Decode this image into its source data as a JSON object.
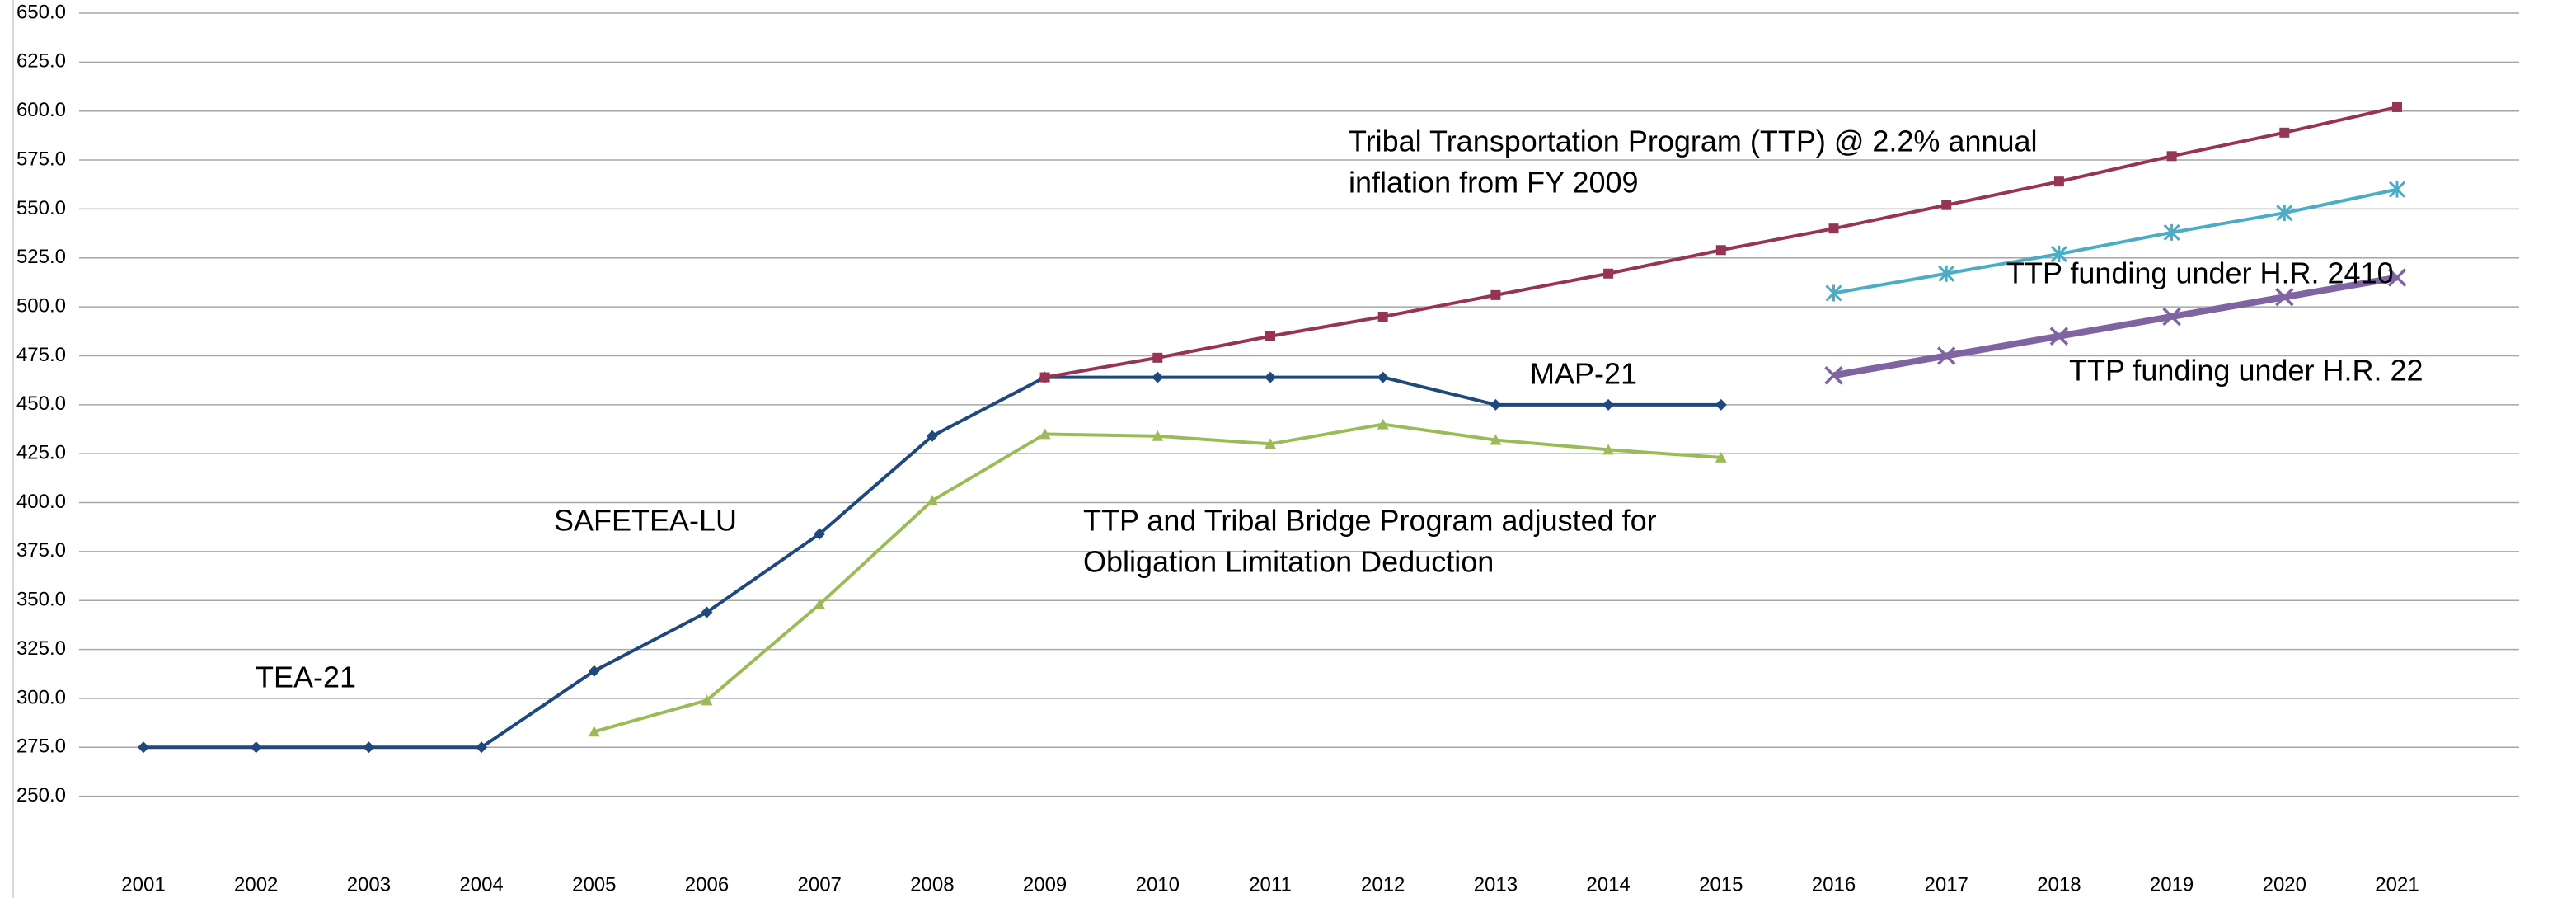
{
  "chart_data": {
    "type": "line",
    "categories": [
      "2001",
      "2002",
      "2003",
      "2004",
      "2005",
      "2006",
      "2007",
      "2008",
      "2009",
      "2010",
      "2011",
      "2012",
      "2013",
      "2014",
      "2015",
      "2016",
      "2017",
      "2018",
      "2019",
      "2020",
      "2021"
    ],
    "series": [
      {
        "color": "#1f497d",
        "marker": "diamond",
        "values": [
          275,
          275,
          275,
          275,
          314,
          344,
          384,
          434,
          464,
          464,
          464,
          464,
          450,
          450,
          450,
          null,
          null,
          null,
          null,
          null,
          null
        ]
      },
      {
        "color": "#9bbb59",
        "marker": "triangle",
        "values": [
          null,
          null,
          null,
          null,
          283,
          299,
          348,
          401,
          435,
          434,
          430,
          440,
          432,
          427,
          423,
          null,
          null,
          null,
          null,
          null,
          null
        ]
      },
      {
        "color": "#953553",
        "marker": "square",
        "values": [
          null,
          null,
          null,
          null,
          null,
          null,
          null,
          null,
          464,
          474,
          485,
          495,
          506,
          517,
          529,
          540,
          552,
          564,
          577,
          589,
          602
        ]
      },
      {
        "color": "#4bacc6",
        "marker": "asterisk",
        "values": [
          null,
          null,
          null,
          null,
          null,
          null,
          null,
          null,
          null,
          null,
          null,
          null,
          null,
          null,
          null,
          507,
          517,
          527,
          538,
          548,
          560
        ]
      },
      {
        "color": "#8064a2",
        "marker": "x",
        "values": [
          null,
          null,
          null,
          null,
          null,
          null,
          null,
          null,
          null,
          null,
          null,
          null,
          null,
          null,
          null,
          465,
          475,
          485,
          495,
          505,
          515
        ]
      }
    ],
    "annotations": [
      {
        "lines": [
          "TEA-21"
        ],
        "color": "#1f497d"
      },
      {
        "lines": [
          "SAFETEA-LU"
        ],
        "color": "#1f497d"
      },
      {
        "lines": [
          "MAP-21"
        ],
        "color": "#1f497d"
      },
      {
        "lines": [
          "Tribal Transportation Program (TTP) @ 2.2% annual",
          "inflation from FY 2009"
        ],
        "color": "#c00000"
      },
      {
        "lines": [
          "TTP and  Tribal Bridge Program adjusted for",
          "Obligation Limitation Deduction"
        ],
        "color": "#9bbb59"
      },
      {
        "lines": [
          "TTP funding under H.R. 2410"
        ],
        "color": "#4bacc6"
      },
      {
        "lines": [
          "TTP funding under H.R. 22"
        ],
        "color": "#8064a2"
      }
    ],
    "ylim": [
      225,
      650
    ],
    "yticks": [
      {
        "value": 250,
        "label": "250.0"
      },
      {
        "value": 275,
        "label": "275.0"
      },
      {
        "value": 300,
        "label": "300.0"
      },
      {
        "value": 325,
        "label": "325.0"
      },
      {
        "value": 350,
        "label": "350.0"
      },
      {
        "value": 375,
        "label": "375.0"
      },
      {
        "value": 400,
        "label": "400.0"
      },
      {
        "value": 425,
        "label": "425.0"
      },
      {
        "value": 450,
        "label": "450.0"
      },
      {
        "value": 475,
        "label": "475.0"
      },
      {
        "value": 500,
        "label": "500.0"
      },
      {
        "value": 525,
        "label": "525.0"
      },
      {
        "value": 550,
        "label": "550.0"
      },
      {
        "value": 575,
        "label": "575.0"
      },
      {
        "value": 600,
        "label": "600.0"
      },
      {
        "value": 625,
        "label": "625.0"
      },
      {
        "value": 650,
        "label": "650.0"
      }
    ],
    "grid": true
  }
}
